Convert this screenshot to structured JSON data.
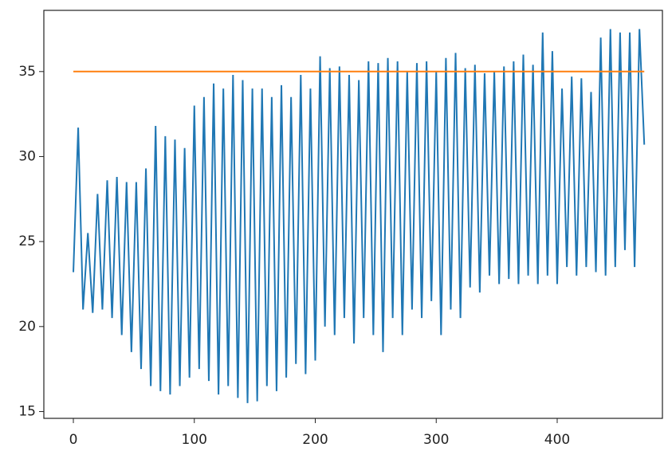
{
  "chart_data": {
    "type": "line",
    "xlim": [
      -24.4,
      487
    ],
    "ylim": [
      14.6,
      38.6
    ],
    "xticks": [
      0,
      100,
      200,
      300,
      400
    ],
    "yticks": [
      15,
      20,
      25,
      30,
      35
    ],
    "series": [
      {
        "color": "#1f77b4",
        "x": [
          0,
          4,
          8,
          12,
          16,
          20,
          24,
          28,
          32,
          36,
          40,
          44,
          48,
          52,
          56,
          60,
          64,
          68,
          72,
          76,
          80,
          84,
          88,
          92,
          96,
          100,
          104,
          108,
          112,
          116,
          120,
          124,
          128,
          132,
          136,
          140,
          144,
          148,
          152,
          156,
          160,
          164,
          168,
          172,
          176,
          180,
          184,
          188,
          192,
          196,
          200,
          204,
          208,
          212,
          216,
          220,
          224,
          228,
          232,
          236,
          240,
          244,
          248,
          252,
          256,
          260,
          264,
          268,
          272,
          276,
          280,
          284,
          288,
          292,
          296,
          300,
          304,
          308,
          312,
          316,
          320,
          324,
          328,
          332,
          336,
          340,
          344,
          348,
          352,
          356,
          360,
          364,
          368,
          372,
          376,
          380,
          384,
          388,
          392,
          396,
          400,
          404,
          408,
          412,
          416,
          420,
          424,
          428,
          432,
          436,
          440,
          444,
          448,
          452,
          456,
          460,
          464,
          468,
          472
        ],
        "values": [
          23.2,
          31.7,
          21.0,
          25.5,
          20.8,
          27.8,
          21.0,
          28.6,
          20.5,
          28.8,
          19.5,
          28.5,
          18.5,
          28.5,
          17.5,
          29.3,
          16.5,
          31.8,
          16.2,
          31.2,
          16.0,
          31.0,
          16.5,
          30.5,
          17.0,
          33.0,
          17.5,
          33.5,
          16.8,
          34.3,
          16.0,
          34.0,
          16.5,
          34.8,
          15.8,
          34.5,
          15.5,
          34.0,
          15.6,
          34.0,
          16.5,
          33.5,
          16.2,
          34.2,
          17.0,
          33.5,
          17.8,
          34.8,
          17.2,
          34.0,
          18.0,
          35.9,
          20.0,
          35.2,
          19.5,
          35.3,
          20.5,
          34.8,
          19.0,
          34.5,
          20.5,
          35.6,
          19.5,
          35.5,
          18.5,
          35.8,
          20.5,
          35.6,
          19.5,
          35.0,
          21.0,
          35.5,
          20.5,
          35.6,
          21.5,
          35.0,
          19.5,
          35.8,
          21.0,
          36.1,
          20.5,
          35.2,
          22.3,
          35.4,
          22.0,
          34.9,
          23.0,
          35.0,
          22.5,
          35.3,
          22.8,
          35.6,
          22.5,
          36.0,
          23.0,
          35.4,
          22.5,
          37.3,
          23.0,
          36.2,
          22.5,
          34.0,
          23.5,
          34.7,
          23.0,
          34.6,
          23.5,
          33.8,
          23.2,
          37.0,
          23.0,
          37.5,
          23.5,
          37.3,
          24.5,
          37.3,
          23.5,
          37.5,
          30.7
        ]
      },
      {
        "color": "#ff7f0e",
        "x": [
          0,
          472
        ],
        "values": [
          35,
          35
        ]
      }
    ]
  }
}
